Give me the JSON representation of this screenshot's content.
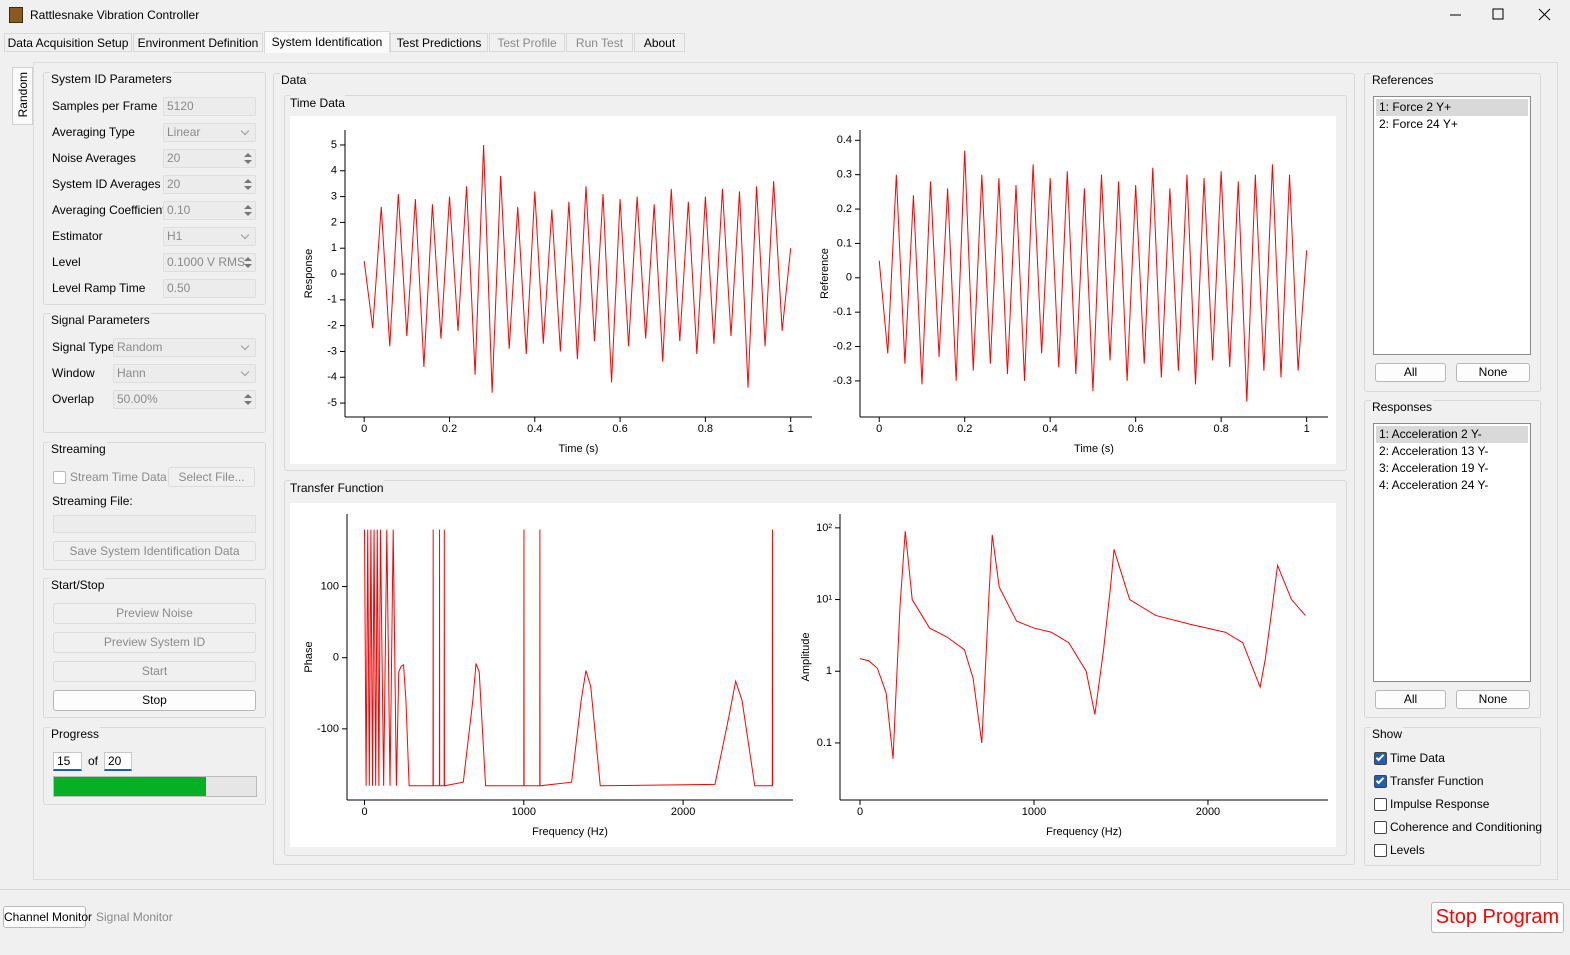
{
  "window": {
    "title": "Rattlesnake Vibration Controller"
  },
  "tabs": [
    {
      "label": "Data Acquisition Setup",
      "enabled": true,
      "active": false
    },
    {
      "label": "Environment Definition",
      "enabled": true,
      "active": false
    },
    {
      "label": "System Identification",
      "enabled": true,
      "active": true
    },
    {
      "label": "Test Predictions",
      "enabled": true,
      "active": false
    },
    {
      "label": "Test Profile",
      "enabled": false,
      "active": false
    },
    {
      "label": "Run Test",
      "enabled": false,
      "active": false
    },
    {
      "label": "About",
      "enabled": true,
      "active": false
    }
  ],
  "side_tab": "Random",
  "sysid": {
    "title": "System ID Parameters",
    "fields": [
      {
        "label": "Samples per Frame",
        "value": "5120",
        "control": "text"
      },
      {
        "label": "Averaging Type",
        "value": "Linear",
        "control": "combo"
      },
      {
        "label": "Noise Averages",
        "value": "20",
        "control": "spin"
      },
      {
        "label": "System ID Averages",
        "value": "20",
        "control": "spin"
      },
      {
        "label": "Averaging Coefficient",
        "value": "0.10",
        "control": "spin"
      },
      {
        "label": "Estimator",
        "value": "H1",
        "control": "combo"
      },
      {
        "label": "Level",
        "value": "0.1000 V RMS",
        "control": "spin"
      },
      {
        "label": "Level Ramp Time",
        "value": "0.50",
        "control": "text"
      }
    ]
  },
  "signal": {
    "title": "Signal Parameters",
    "fields": [
      {
        "label": "Signal Type",
        "value": "Random",
        "control": "combo"
      },
      {
        "label": "Window",
        "value": "Hann",
        "control": "combo"
      },
      {
        "label": "Overlap",
        "value": "50.00%",
        "control": "spin"
      }
    ]
  },
  "streaming": {
    "title": "Streaming",
    "checkbox": {
      "label": "Stream Time Data",
      "checked": false
    },
    "select": "Select File...",
    "file_label": "Streaming File:",
    "save": "Save System Identification Data"
  },
  "start_stop": {
    "title": "Start/Stop",
    "buttons": [
      {
        "label": "Preview Noise",
        "enabled": false
      },
      {
        "label": "Preview System ID",
        "enabled": false
      },
      {
        "label": "Start",
        "enabled": false
      },
      {
        "label": "Stop",
        "enabled": true
      }
    ]
  },
  "progress": {
    "title": "Progress",
    "current": 15,
    "of": "of",
    "total": 20
  },
  "data": {
    "title": "Data",
    "time_title": "Time Data",
    "tf_title": "Transfer Function"
  },
  "references": {
    "title": "References",
    "items": [
      {
        "label": "1: Force 2 Y+",
        "selected": true
      },
      {
        "label": "2: Force 24 Y+",
        "selected": false
      }
    ],
    "all": "All",
    "none": "None"
  },
  "responses": {
    "title": "Responses",
    "items": [
      {
        "label": "1: Acceleration 2 Y-",
        "selected": true
      },
      {
        "label": "2: Acceleration 13 Y-",
        "selected": false
      },
      {
        "label": "3: Acceleration 19 Y-",
        "selected": false
      },
      {
        "label": "4: Acceleration 24 Y-",
        "selected": false
      }
    ],
    "all": "All",
    "none": "None"
  },
  "show": {
    "title": "Show",
    "options": [
      {
        "label": "Time Data",
        "checked": true
      },
      {
        "label": "Transfer Function",
        "checked": true
      },
      {
        "label": "Impulse Response",
        "checked": false
      },
      {
        "label": "Coherence and Conditioning",
        "checked": false
      },
      {
        "label": "Levels",
        "checked": false
      }
    ]
  },
  "bottom": {
    "channel_monitor": "Channel Monitor",
    "signal_monitor": "Signal Monitor",
    "stop": "Stop Program"
  },
  "chart_data": [
    {
      "type": "line",
      "x_label": "Time (s)",
      "y_label": "Response",
      "color": "#ff0000",
      "x": [
        0,
        0.02,
        0.04,
        0.06,
        0.08,
        0.1,
        0.12,
        0.14,
        0.16,
        0.18,
        0.2,
        0.22,
        0.24,
        0.26,
        0.28,
        0.3,
        0.32,
        0.34,
        0.36,
        0.38,
        0.4,
        0.42,
        0.44,
        0.46,
        0.48,
        0.5,
        0.52,
        0.54,
        0.56,
        0.58,
        0.6,
        0.62,
        0.64,
        0.66,
        0.68,
        0.7,
        0.72,
        0.74,
        0.76,
        0.78,
        0.8,
        0.82,
        0.84,
        0.86,
        0.88,
        0.9,
        0.92,
        0.94,
        0.96,
        0.98,
        1
      ],
      "values": [
        0.5,
        -2.1,
        2.6,
        -2.8,
        3.1,
        -2.4,
        2.9,
        -3.6,
        2.7,
        -2.5,
        3.0,
        -2.2,
        3.4,
        -3.9,
        5.0,
        -4.6,
        3.8,
        -2.9,
        2.6,
        -3.1,
        3.2,
        -2.7,
        2.5,
        -3.0,
        2.8,
        -3.3,
        3.4,
        -2.6,
        3.1,
        -4.2,
        2.9,
        -2.8,
        3.0,
        -2.5,
        2.7,
        -3.4,
        3.3,
        -2.6,
        2.8,
        -3.1,
        3.0,
        -2.7,
        3.3,
        -2.4,
        3.2,
        -4.4,
        3.4,
        -2.8,
        3.6,
        -2.2,
        1.0
      ],
      "xlim": [
        -0.045,
        1.05
      ],
      "xticks": [
        0,
        0.2,
        0.4,
        0.6,
        0.8,
        1
      ],
      "ylim": [
        -5.54,
        5.58
      ],
      "yticks": [
        -5,
        -4,
        -3,
        -2,
        -1,
        0,
        1,
        2,
        3,
        4,
        5
      ],
      "log": false
    },
    {
      "type": "line",
      "x_label": "Time (s)",
      "y_label": "Reference",
      "color": "#ff0000",
      "x": [
        0,
        0.02,
        0.04,
        0.06,
        0.08,
        0.1,
        0.12,
        0.14,
        0.16,
        0.18,
        0.2,
        0.22,
        0.24,
        0.26,
        0.28,
        0.3,
        0.32,
        0.34,
        0.36,
        0.38,
        0.4,
        0.42,
        0.44,
        0.46,
        0.48,
        0.5,
        0.52,
        0.54,
        0.56,
        0.58,
        0.6,
        0.62,
        0.64,
        0.66,
        0.68,
        0.7,
        0.72,
        0.74,
        0.76,
        0.78,
        0.8,
        0.82,
        0.84,
        0.86,
        0.88,
        0.9,
        0.92,
        0.94,
        0.96,
        0.98,
        1
      ],
      "values": [
        0.05,
        -0.22,
        0.3,
        -0.25,
        0.24,
        -0.31,
        0.28,
        -0.23,
        0.26,
        -0.3,
        0.37,
        -0.27,
        0.3,
        -0.25,
        0.29,
        -0.28,
        0.27,
        -0.3,
        0.33,
        -0.22,
        0.29,
        -0.26,
        0.31,
        -0.28,
        0.26,
        -0.33,
        0.3,
        -0.24,
        0.28,
        -0.3,
        0.27,
        -0.25,
        0.32,
        -0.29,
        0.26,
        -0.27,
        0.3,
        -0.31,
        0.29,
        -0.24,
        0.31,
        -0.26,
        0.28,
        -0.36,
        0.3,
        -0.27,
        0.33,
        -0.29,
        0.3,
        -0.27,
        0.08
      ],
      "xlim": [
        -0.045,
        1.05
      ],
      "xticks": [
        0,
        0.2,
        0.4,
        0.6,
        0.8,
        1
      ],
      "ylim": [
        -0.405,
        0.43
      ],
      "yticks": [
        -0.3,
        -0.2,
        -0.1,
        0,
        0.1,
        0.2,
        0.3,
        0.4
      ],
      "log": false
    },
    {
      "type": "line",
      "x_label": "Frequency (Hz)",
      "y_label": "Phase",
      "color": "#ff0000",
      "x": [
        0,
        10,
        20,
        30,
        40,
        50,
        60,
        70,
        80,
        90,
        100,
        120,
        140,
        160,
        180,
        200,
        215,
        230,
        245,
        260,
        280,
        430,
        431,
        432,
        470,
        471,
        472,
        500,
        501,
        502,
        620,
        680,
        700,
        720,
        760,
        1000,
        1001,
        1002,
        1100,
        1101,
        1102,
        1300,
        1360,
        1390,
        1420,
        1480,
        2200,
        2290,
        2330,
        2370,
        2450,
        2560,
        2561,
        2562
      ],
      "values": [
        180,
        -180,
        180,
        -180,
        180,
        -180,
        180,
        -180,
        180,
        -180,
        180,
        -180,
        180,
        -180,
        180,
        -180,
        -20,
        -12,
        -10,
        -60,
        -180,
        -180,
        180,
        -180,
        -180,
        180,
        -180,
        -180,
        180,
        -180,
        -175,
        -60,
        -8,
        -20,
        -180,
        -180,
        180,
        -180,
        -180,
        180,
        -180,
        -175,
        -60,
        -18,
        -40,
        -180,
        -178,
        -80,
        -33,
        -60,
        -180,
        -180,
        180,
        -180
      ],
      "xlim": [
        -110,
        2690
      ],
      "xticks": [
        0,
        1000,
        2000
      ],
      "ylim": [
        -200,
        202
      ],
      "yticks": [
        -100,
        0,
        100
      ],
      "log": false
    },
    {
      "type": "line",
      "x_label": "Frequency (Hz)",
      "y_label": "Amplitude",
      "color": "#ff0000",
      "x": [
        0,
        50,
        100,
        150,
        190,
        205,
        230,
        260,
        275,
        300,
        400,
        500,
        600,
        650,
        700,
        740,
        760,
        800,
        900,
        1000,
        1100,
        1200,
        1300,
        1350,
        1400,
        1440,
        1460,
        1550,
        1700,
        1900,
        2100,
        2200,
        2300,
        2330,
        2370,
        2400,
        2480,
        2560
      ],
      "values": [
        1.5,
        1.4,
        1.1,
        0.5,
        0.06,
        0.4,
        8,
        90,
        40,
        10,
        4,
        3,
        2,
        0.8,
        0.1,
        10,
        80,
        15,
        5,
        4,
        3.5,
        2.5,
        1,
        0.25,
        2,
        15,
        50,
        10,
        6,
        4.5,
        3.5,
        2.5,
        0.6,
        1.5,
        8,
        30,
        10,
        6
      ],
      "xlim": [
        -115,
        2690
      ],
      "xticks": [
        0,
        1000,
        2000
      ],
      "ylim": [
        0.016,
        156
      ],
      "yticks": [
        0.1,
        1,
        {
          "value": 10,
          "label": "10¹"
        },
        {
          "value": 100,
          "label": "10²"
        }
      ],
      "log": true
    }
  ]
}
